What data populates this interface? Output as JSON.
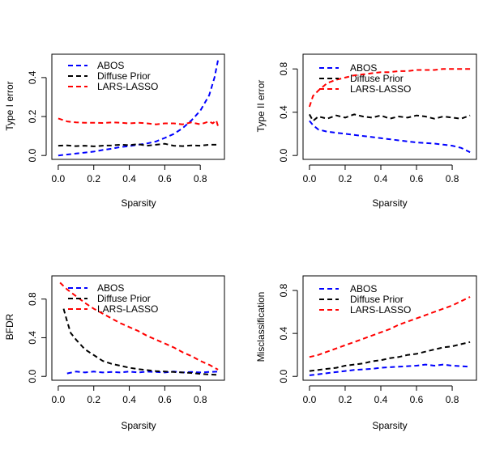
{
  "colors": {
    "abos": "#0000ff",
    "diffuse": "#000000",
    "lars": "#ff0000",
    "axis": "#000000"
  },
  "legend_entries": [
    "ABOS",
    "Diffuse Prior",
    "LARS-LASSO"
  ],
  "chart_data": [
    {
      "type": "line",
      "title": "",
      "xlabel": "Sparsity",
      "ylabel": "Type I error",
      "legend_position": "top-left",
      "xlim": [
        0,
        0.9
      ],
      "ylim": [
        0,
        0.5
      ],
      "xticks": [
        0.0,
        0.2,
        0.4,
        0.6,
        0.8
      ],
      "xtick_labels": [
        "0.0",
        "0.2",
        "0.4",
        "0.6",
        "0.8"
      ],
      "yticks": [
        0.0,
        0.2,
        0.4
      ],
      "ytick_labels": [
        "0.0",
        "0.2",
        "0.4"
      ],
      "series": [
        {
          "name": "ABOS",
          "color": "#0000ff",
          "x": [
            0.0,
            0.05,
            0.1,
            0.15,
            0.2,
            0.25,
            0.3,
            0.35,
            0.4,
            0.45,
            0.5,
            0.55,
            0.6,
            0.65,
            0.7,
            0.75,
            0.8,
            0.85,
            0.88,
            0.9
          ],
          "y": [
            0.0,
            0.005,
            0.01,
            0.015,
            0.02,
            0.028,
            0.035,
            0.043,
            0.048,
            0.055,
            0.062,
            0.072,
            0.09,
            0.11,
            0.14,
            0.18,
            0.23,
            0.31,
            0.4,
            0.49
          ]
        },
        {
          "name": "Diffuse Prior",
          "color": "#000000",
          "x": [
            0.0,
            0.05,
            0.1,
            0.15,
            0.2,
            0.25,
            0.3,
            0.35,
            0.4,
            0.45,
            0.5,
            0.55,
            0.6,
            0.65,
            0.7,
            0.75,
            0.8,
            0.85,
            0.9
          ],
          "y": [
            0.05,
            0.052,
            0.048,
            0.05,
            0.047,
            0.05,
            0.052,
            0.055,
            0.053,
            0.058,
            0.05,
            0.055,
            0.06,
            0.05,
            0.048,
            0.052,
            0.05,
            0.055,
            0.055
          ]
        },
        {
          "name": "LARS-LASSO",
          "color": "#ff0000",
          "x": [
            0.0,
            0.05,
            0.1,
            0.15,
            0.2,
            0.25,
            0.3,
            0.35,
            0.4,
            0.45,
            0.5,
            0.55,
            0.6,
            0.65,
            0.7,
            0.75,
            0.8,
            0.85,
            0.87,
            0.89,
            0.9
          ],
          "y": [
            0.19,
            0.175,
            0.17,
            0.168,
            0.168,
            0.167,
            0.17,
            0.168,
            0.165,
            0.168,
            0.165,
            0.16,
            0.165,
            0.165,
            0.16,
            0.17,
            0.16,
            0.175,
            0.165,
            0.18,
            0.15
          ]
        }
      ]
    },
    {
      "type": "line",
      "title": "",
      "xlabel": "Sparsity",
      "ylabel": "Type II error",
      "legend_position": "top-left",
      "xlim": [
        0,
        0.9
      ],
      "ylim": [
        0,
        0.9
      ],
      "xticks": [
        0.0,
        0.2,
        0.4,
        0.6,
        0.8
      ],
      "xtick_labels": [
        "0.0",
        "0.2",
        "0.4",
        "0.6",
        "0.8"
      ],
      "yticks": [
        0.0,
        0.4,
        0.8
      ],
      "ytick_labels": [
        "0.0",
        "0.4",
        "0.8"
      ],
      "series": [
        {
          "name": "ABOS",
          "color": "#0000ff",
          "x": [
            0.0,
            0.02,
            0.05,
            0.1,
            0.15,
            0.2,
            0.25,
            0.3,
            0.35,
            0.4,
            0.45,
            0.5,
            0.55,
            0.6,
            0.65,
            0.7,
            0.75,
            0.8,
            0.85,
            0.9
          ],
          "y": [
            0.32,
            0.28,
            0.24,
            0.22,
            0.21,
            0.2,
            0.19,
            0.18,
            0.17,
            0.16,
            0.15,
            0.14,
            0.13,
            0.12,
            0.115,
            0.11,
            0.1,
            0.09,
            0.07,
            0.03
          ]
        },
        {
          "name": "Diffuse Prior",
          "color": "#000000",
          "x": [
            0.0,
            0.02,
            0.05,
            0.1,
            0.15,
            0.2,
            0.25,
            0.3,
            0.35,
            0.4,
            0.45,
            0.5,
            0.55,
            0.6,
            0.65,
            0.7,
            0.75,
            0.8,
            0.85,
            0.9
          ],
          "y": [
            0.38,
            0.32,
            0.36,
            0.34,
            0.37,
            0.35,
            0.38,
            0.36,
            0.35,
            0.37,
            0.34,
            0.36,
            0.35,
            0.37,
            0.36,
            0.34,
            0.36,
            0.35,
            0.34,
            0.37
          ]
        },
        {
          "name": "LARS-LASSO",
          "color": "#ff0000",
          "x": [
            0.0,
            0.02,
            0.05,
            0.1,
            0.15,
            0.2,
            0.25,
            0.3,
            0.35,
            0.4,
            0.45,
            0.5,
            0.55,
            0.6,
            0.65,
            0.7,
            0.75,
            0.8,
            0.85,
            0.9
          ],
          "y": [
            0.45,
            0.55,
            0.6,
            0.67,
            0.7,
            0.72,
            0.74,
            0.75,
            0.76,
            0.77,
            0.77,
            0.78,
            0.78,
            0.79,
            0.79,
            0.79,
            0.8,
            0.8,
            0.8,
            0.8
          ]
        }
      ]
    },
    {
      "type": "line",
      "title": "",
      "xlabel": "Sparsity",
      "ylabel": "BFDR",
      "legend_position": "top-left",
      "xlim": [
        0,
        0.9
      ],
      "ylim": [
        0,
        1.0
      ],
      "xticks": [
        0.0,
        0.2,
        0.4,
        0.6,
        0.8
      ],
      "xtick_labels": [
        "0.0",
        "0.2",
        "0.4",
        "0.6",
        "0.8"
      ],
      "yticks": [
        0.0,
        0.4,
        0.8
      ],
      "ytick_labels": [
        "0.0",
        "0.4",
        "0.8"
      ],
      "series": [
        {
          "name": "ABOS",
          "color": "#0000ff",
          "x": [
            0.05,
            0.1,
            0.15,
            0.2,
            0.25,
            0.3,
            0.35,
            0.4,
            0.45,
            0.5,
            0.55,
            0.6,
            0.65,
            0.7,
            0.75,
            0.8,
            0.85,
            0.9
          ],
          "y": [
            0.03,
            0.05,
            0.04,
            0.05,
            0.04,
            0.045,
            0.04,
            0.05,
            0.04,
            0.05,
            0.045,
            0.04,
            0.05,
            0.04,
            0.045,
            0.04,
            0.045,
            0.05
          ]
        },
        {
          "name": "Diffuse Prior",
          "color": "#000000",
          "x": [
            0.03,
            0.05,
            0.07,
            0.1,
            0.15,
            0.2,
            0.25,
            0.3,
            0.35,
            0.4,
            0.45,
            0.5,
            0.55,
            0.6,
            0.65,
            0.7,
            0.75,
            0.8,
            0.85,
            0.9
          ],
          "y": [
            0.7,
            0.57,
            0.45,
            0.38,
            0.28,
            0.22,
            0.16,
            0.13,
            0.11,
            0.09,
            0.075,
            0.065,
            0.055,
            0.05,
            0.045,
            0.04,
            0.035,
            0.025,
            0.02,
            0.015
          ]
        },
        {
          "name": "LARS-LASSO",
          "color": "#ff0000",
          "x": [
            0.01,
            0.05,
            0.1,
            0.15,
            0.2,
            0.25,
            0.3,
            0.35,
            0.4,
            0.45,
            0.5,
            0.55,
            0.6,
            0.65,
            0.7,
            0.75,
            0.8,
            0.85,
            0.9
          ],
          "y": [
            0.97,
            0.9,
            0.83,
            0.76,
            0.7,
            0.65,
            0.6,
            0.55,
            0.51,
            0.47,
            0.42,
            0.38,
            0.34,
            0.3,
            0.25,
            0.21,
            0.16,
            0.12,
            0.07
          ]
        }
      ]
    },
    {
      "type": "line",
      "title": "",
      "xlabel": "Sparsity",
      "ylabel": "Misclassification",
      "legend_position": "top-left",
      "xlim": [
        0,
        0.9
      ],
      "ylim": [
        0,
        0.9
      ],
      "xticks": [
        0.0,
        0.2,
        0.4,
        0.6,
        0.8
      ],
      "xtick_labels": [
        "0.0",
        "0.2",
        "0.4",
        "0.6",
        "0.8"
      ],
      "yticks": [
        0.0,
        0.4,
        0.8
      ],
      "ytick_labels": [
        "0.0",
        "0.4",
        "0.8"
      ],
      "series": [
        {
          "name": "ABOS",
          "color": "#0000ff",
          "x": [
            0.0,
            0.05,
            0.1,
            0.15,
            0.2,
            0.25,
            0.3,
            0.35,
            0.4,
            0.45,
            0.5,
            0.55,
            0.6,
            0.65,
            0.7,
            0.75,
            0.8,
            0.85,
            0.9
          ],
          "y": [
            0.01,
            0.02,
            0.03,
            0.04,
            0.05,
            0.06,
            0.065,
            0.07,
            0.08,
            0.085,
            0.09,
            0.095,
            0.1,
            0.11,
            0.1,
            0.11,
            0.1,
            0.095,
            0.09
          ]
        },
        {
          "name": "Diffuse Prior",
          "color": "#000000",
          "x": [
            0.0,
            0.05,
            0.1,
            0.15,
            0.2,
            0.25,
            0.3,
            0.35,
            0.4,
            0.45,
            0.5,
            0.55,
            0.6,
            0.65,
            0.7,
            0.75,
            0.8,
            0.85,
            0.9
          ],
          "y": [
            0.05,
            0.06,
            0.07,
            0.08,
            0.1,
            0.11,
            0.12,
            0.14,
            0.15,
            0.17,
            0.18,
            0.2,
            0.21,
            0.23,
            0.25,
            0.27,
            0.28,
            0.3,
            0.32
          ]
        },
        {
          "name": "LARS-LASSO",
          "color": "#ff0000",
          "x": [
            0.0,
            0.05,
            0.1,
            0.15,
            0.2,
            0.25,
            0.3,
            0.35,
            0.4,
            0.45,
            0.5,
            0.55,
            0.6,
            0.65,
            0.7,
            0.75,
            0.8,
            0.85,
            0.9
          ],
          "y": [
            0.18,
            0.2,
            0.23,
            0.26,
            0.29,
            0.32,
            0.35,
            0.38,
            0.41,
            0.44,
            0.48,
            0.51,
            0.54,
            0.57,
            0.6,
            0.63,
            0.66,
            0.7,
            0.74
          ]
        }
      ]
    }
  ]
}
